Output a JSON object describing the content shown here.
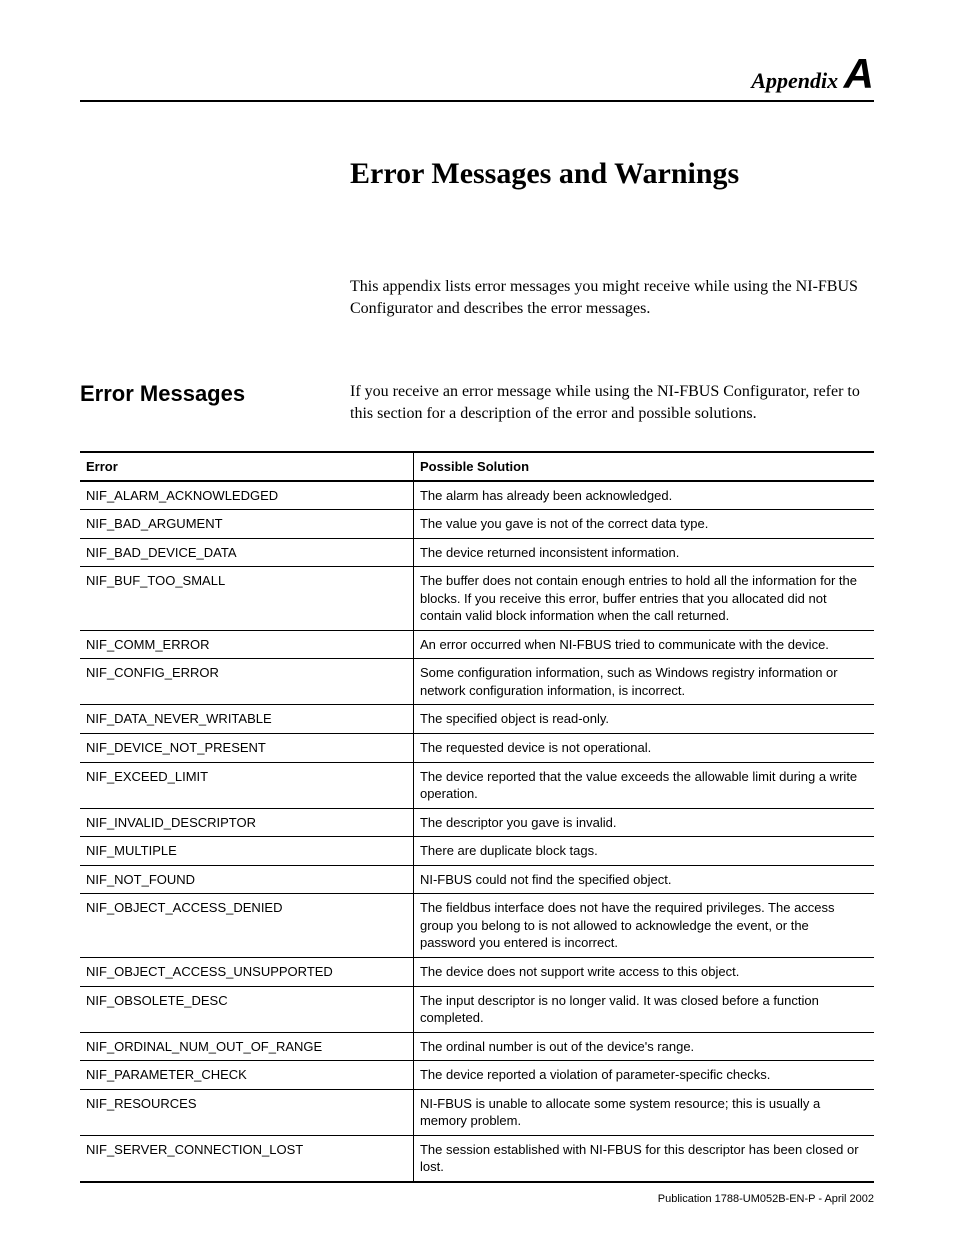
{
  "header": {
    "appendix_word": "Appendix",
    "appendix_letter": "A"
  },
  "page_title": "Error Messages and Warnings",
  "intro": "This appendix lists error messages you might receive while using the NI-FBUS Configurator and describes the error messages.",
  "section": {
    "heading": "Error Messages",
    "text": "If you receive an error message while using the NI-FBUS Configurator, refer to this section for a description of the error and possible solutions."
  },
  "table": {
    "columns": [
      "Error",
      "Possible Solution"
    ],
    "rows": [
      [
        "NIF_ALARM_ACKNOWLEDGED",
        "The alarm has already been acknowledged."
      ],
      [
        "NIF_BAD_ARGUMENT",
        "The value you gave is not of the correct data type."
      ],
      [
        "NIF_BAD_DEVICE_DATA",
        "The device returned inconsistent information."
      ],
      [
        "NIF_BUF_TOO_SMALL",
        "The buffer does not contain enough entries to hold all the information for the blocks. If you receive this error, buffer entries that you allocated did not contain valid block information when the call returned."
      ],
      [
        "NIF_COMM_ERROR",
        "An error occurred when NI-FBUS tried to communicate with the device."
      ],
      [
        "NIF_CONFIG_ERROR",
        "Some configuration information, such as Windows registry information or network configuration information, is incorrect."
      ],
      [
        "NIF_DATA_NEVER_WRITABLE",
        "The specified object is read-only."
      ],
      [
        "NIF_DEVICE_NOT_PRESENT",
        "The requested device is not operational."
      ],
      [
        "NIF_EXCEED_LIMIT",
        "The device reported that the value exceeds the allowable limit during a write operation."
      ],
      [
        "NIF_INVALID_DESCRIPTOR",
        "The descriptor you gave is invalid."
      ],
      [
        "NIF_MULTIPLE",
        "There are duplicate block tags."
      ],
      [
        "NIF_NOT_FOUND",
        "NI-FBUS could not find the specified object."
      ],
      [
        "NIF_OBJECT_ACCESS_DENIED",
        "The fieldbus interface does not have the required privileges. The access group you belong to is not allowed to acknowledge the event, or the password you entered is incorrect."
      ],
      [
        "NIF_OBJECT_ACCESS_UNSUPPORTED",
        "The device does not support write access to this object."
      ],
      [
        "NIF_OBSOLETE_DESC",
        "The input descriptor is no longer valid. It was closed before a function completed."
      ],
      [
        "NIF_ORDINAL_NUM_OUT_OF_RANGE",
        "The ordinal number is out of the device's range."
      ],
      [
        "NIF_PARAMETER_CHECK",
        "The device reported a violation of parameter-specific checks."
      ],
      [
        "NIF_RESOURCES",
        "NI-FBUS is unable to allocate some system resource; this is usually a memory problem."
      ],
      [
        "NIF_SERVER_CONNECTION_LOST",
        "The session established with NI-FBUS for this descriptor has been closed or lost."
      ]
    ]
  },
  "footer": "Publication 1788-UM052B-EN-P - April 2002"
}
